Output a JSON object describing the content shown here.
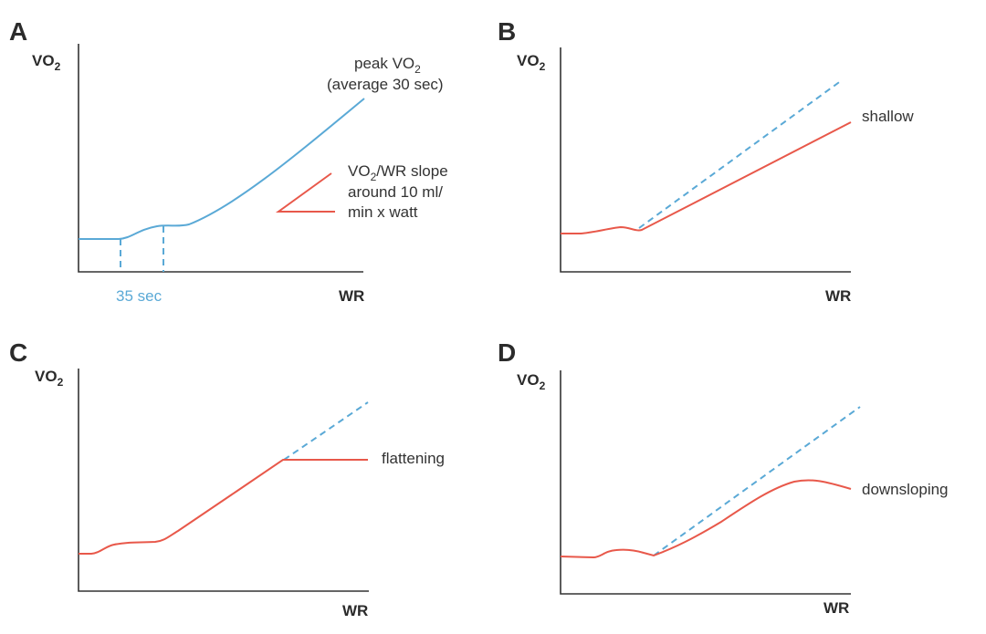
{
  "colors": {
    "blue": "#5aa9d6",
    "red": "#e8584a",
    "axis": "#333333",
    "text": "#2b2b2b"
  },
  "panels": {
    "A": {
      "letter": "A",
      "ylabel_main": "VO",
      "ylabel_sub": "2",
      "xlabel": "WR",
      "peak_line1_main": "peak VO",
      "peak_line1_sub": "2",
      "peak_line2": "(average 30 sec)",
      "slope_line1_main": "VO",
      "slope_line1_sub": "2",
      "slope_line1_rest": "/WR slope",
      "slope_line2": "around 10 ml/",
      "slope_line3": "min x watt",
      "interval_label": "35 sec"
    },
    "B": {
      "letter": "B",
      "ylabel_main": "VO",
      "ylabel_sub": "2",
      "xlabel": "WR",
      "curve_label": "shallow"
    },
    "C": {
      "letter": "C",
      "ylabel_main": "VO",
      "ylabel_sub": "2",
      "xlabel": "WR",
      "curve_label": "flattening"
    },
    "D": {
      "letter": "D",
      "ylabel_main": "VO",
      "ylabel_sub": "2",
      "xlabel": "WR",
      "curve_label": "downsloping"
    }
  }
}
